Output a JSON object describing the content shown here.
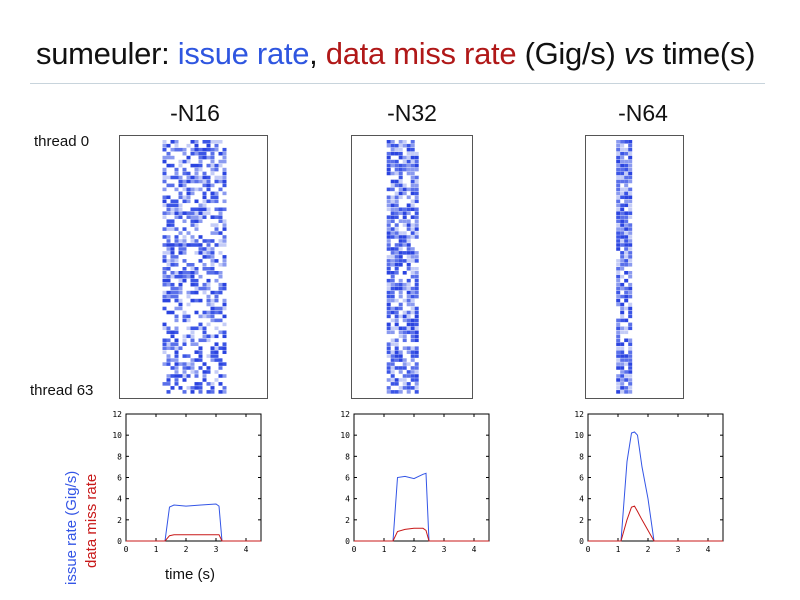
{
  "title": {
    "prefix": "sumeuler: ",
    "issue": "issue rate",
    "sep": ", ",
    "miss": "data miss rate",
    "unit": " (Gig/s) ",
    "vs": "vs",
    "suffix": " time(s)"
  },
  "columns": [
    "-N16",
    "-N32",
    "-N64"
  ],
  "row_labels": {
    "top": "thread 0",
    "bottom": "thread 63"
  },
  "ylabel_issue": "issue rate (Gig/s)",
  "ylabel_miss": "data miss rate",
  "xlabel": "time (s)",
  "colors": {
    "issue": "#3355e6",
    "miss": "#c81818",
    "axis": "#000000"
  },
  "chart_data": [
    {
      "type": "line",
      "panel": "-N16",
      "x": [
        0,
        1.3,
        1.45,
        1.6,
        2.0,
        2.5,
        3.0,
        3.1,
        3.2,
        4.5
      ],
      "xlim": [
        0,
        4.5
      ],
      "ylim": [
        0,
        12
      ],
      "xticks": [
        "0",
        "1",
        "2",
        "3",
        "4"
      ],
      "yticks": [
        "0",
        "2",
        "4",
        "6",
        "8",
        "10",
        "12"
      ],
      "series": [
        {
          "values": [
            0,
            0,
            3.2,
            3.4,
            3.3,
            3.4,
            3.5,
            3.3,
            0,
            0
          ]
        },
        {
          "values": [
            0,
            0,
            0.5,
            0.6,
            0.6,
            0.6,
            0.6,
            0.6,
            0,
            0
          ]
        }
      ]
    },
    {
      "type": "line",
      "panel": "-N32",
      "x": [
        0,
        1.3,
        1.45,
        1.7,
        2.0,
        2.3,
        2.4,
        2.5,
        4.5
      ],
      "xlim": [
        0,
        4.5
      ],
      "ylim": [
        0,
        12
      ],
      "xticks": [
        "0",
        "1",
        "2",
        "3",
        "4"
      ],
      "yticks": [
        "0",
        "2",
        "4",
        "6",
        "8",
        "10",
        "12"
      ],
      "series": [
        {
          "values": [
            0,
            0,
            6.0,
            6.1,
            5.9,
            6.3,
            6.4,
            0,
            0
          ]
        },
        {
          "values": [
            0,
            0,
            0.9,
            1.1,
            1.2,
            1.2,
            1.0,
            0,
            0
          ]
        }
      ]
    },
    {
      "type": "line",
      "panel": "-N64",
      "x": [
        0,
        1.1,
        1.3,
        1.45,
        1.55,
        1.65,
        1.8,
        2.0,
        2.2,
        4.5
      ],
      "xlim": [
        0,
        4.5
      ],
      "ylim": [
        0,
        12
      ],
      "xticks": [
        "0",
        "1",
        "2",
        "3",
        "4"
      ],
      "yticks": [
        "0",
        "2",
        "4",
        "6",
        "8",
        "10",
        "12"
      ],
      "series": [
        {
          "values": [
            0,
            0,
            7.5,
            10.2,
            10.3,
            10.0,
            7.0,
            4.0,
            0,
            0
          ]
        },
        {
          "values": [
            0,
            0,
            2.0,
            3.2,
            3.3,
            2.8,
            2.0,
            1.0,
            0,
            0
          ]
        }
      ]
    }
  ],
  "heatmap_data": [
    {
      "type": "heatmap",
      "panel": "-N16",
      "rows": 64,
      "time_range": [
        1.3,
        3.2
      ],
      "density": 0.55
    },
    {
      "type": "heatmap",
      "panel": "-N32",
      "rows": 64,
      "time_range": [
        1.3,
        2.5
      ],
      "density": 0.72
    },
    {
      "type": "heatmap",
      "panel": "-N64",
      "rows": 64,
      "time_range": [
        1.4,
        2.1
      ],
      "density": 0.85
    }
  ]
}
